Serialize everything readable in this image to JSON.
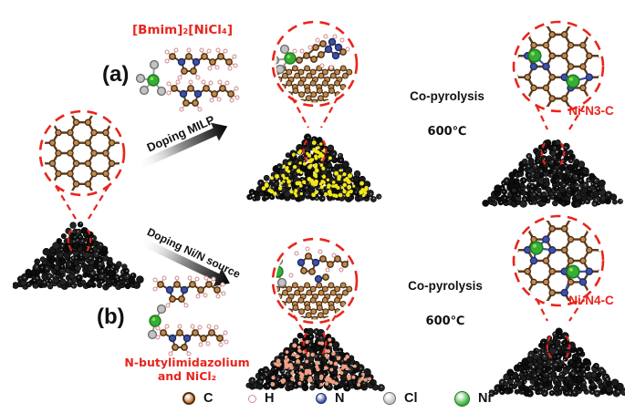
{
  "figure": {
    "panel_a_label": "(a)",
    "panel_b_label": "(b)",
    "reagent_a": "[Bmim]₂[NiCl₄]",
    "reagent_b_line1": "N-butylimidazolium",
    "reagent_b_line2": "and NiCl₂",
    "arrow_a": "Doping MILP",
    "arrow_b": "Doping Ni/N source",
    "pyrolysis_label": "Co-pyrolysis",
    "pyrolysis_temp": "600℃",
    "product_a": "Ni-N3-C",
    "product_b": "Ni-N4-C"
  },
  "legend": {
    "items": [
      {
        "symbol": "C",
        "color": "#c77a3e",
        "ring": "#53300f",
        "size": 10
      },
      {
        "symbol": "H",
        "color": "#ffffff",
        "ring": "#d08c8c",
        "size": 7
      },
      {
        "symbol": "N",
        "color": "#3f51a3",
        "ring": "#1c2a66",
        "size": 10
      },
      {
        "symbol": "Cl",
        "color": "#c2c2c2",
        "ring": "#6e6e6e",
        "size": 12
      },
      {
        "symbol": "Ni",
        "color": "#35ae35",
        "ring": "#1c7a1c",
        "size": 15
      }
    ]
  },
  "colors": {
    "accent_red": "#e8251d",
    "carbon_fill": "#bf8a52",
    "carbon_stroke": "#4a2c10",
    "bond": "#5f3b1c",
    "nitrogen": "#3f51a3",
    "nitrogen_stroke": "#1c2a66",
    "nickel": "#35ae35",
    "nickel_hi": "#8fdc52",
    "nickel_stroke": "#1c7a1c",
    "chlorine": "#c2c2c2",
    "chlorine_stroke": "#6e6e6e",
    "hydrogen": "#ffffff",
    "hydrogen_stroke": "#d08c8c",
    "granule": "#141414",
    "dopant_a": "#f2e718",
    "dopant_b": "#efa183"
  }
}
